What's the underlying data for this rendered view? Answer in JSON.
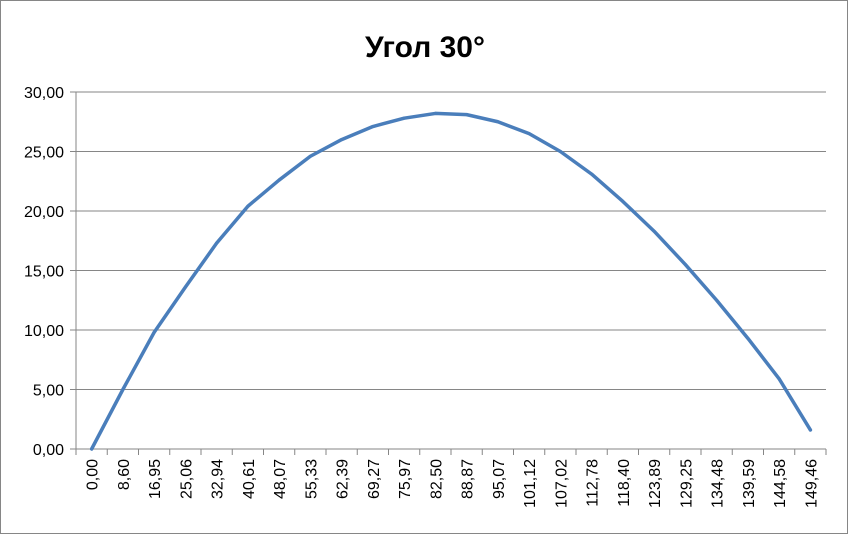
{
  "chart_data": {
    "type": "line",
    "title": "Угол  30°",
    "xlabel": "",
    "ylabel": "",
    "ylim": [
      0,
      30
    ],
    "y_ticks": [
      "0,00",
      "5,00",
      "10,00",
      "15,00",
      "20,00",
      "25,00",
      "30,00"
    ],
    "y_tick_values": [
      0,
      5,
      10,
      15,
      20,
      25,
      30
    ],
    "categories": [
      "0,00",
      "8,60",
      "16,95",
      "25,06",
      "32,94",
      "40,61",
      "48,07",
      "55,33",
      "62,39",
      "69,27",
      "75,97",
      "82,50",
      "88,87",
      "95,07",
      "101,12",
      "107,02",
      "112,78",
      "118,40",
      "123,89",
      "129,25",
      "134,48",
      "139,59",
      "144,58",
      "149,46"
    ],
    "grid": true,
    "legend": "none",
    "colors": {
      "line": "#4a7ebb",
      "grid": "#868686",
      "axis": "#868686"
    },
    "series": [
      {
        "values": [
          0.0,
          5.0,
          9.8,
          13.6,
          17.3,
          20.4,
          22.6,
          24.6,
          26.0,
          27.1,
          27.8,
          28.2,
          28.1,
          27.5,
          26.5,
          25.0,
          23.1,
          20.8,
          18.3,
          15.5,
          12.5,
          9.3,
          5.9,
          1.6
        ]
      }
    ]
  }
}
